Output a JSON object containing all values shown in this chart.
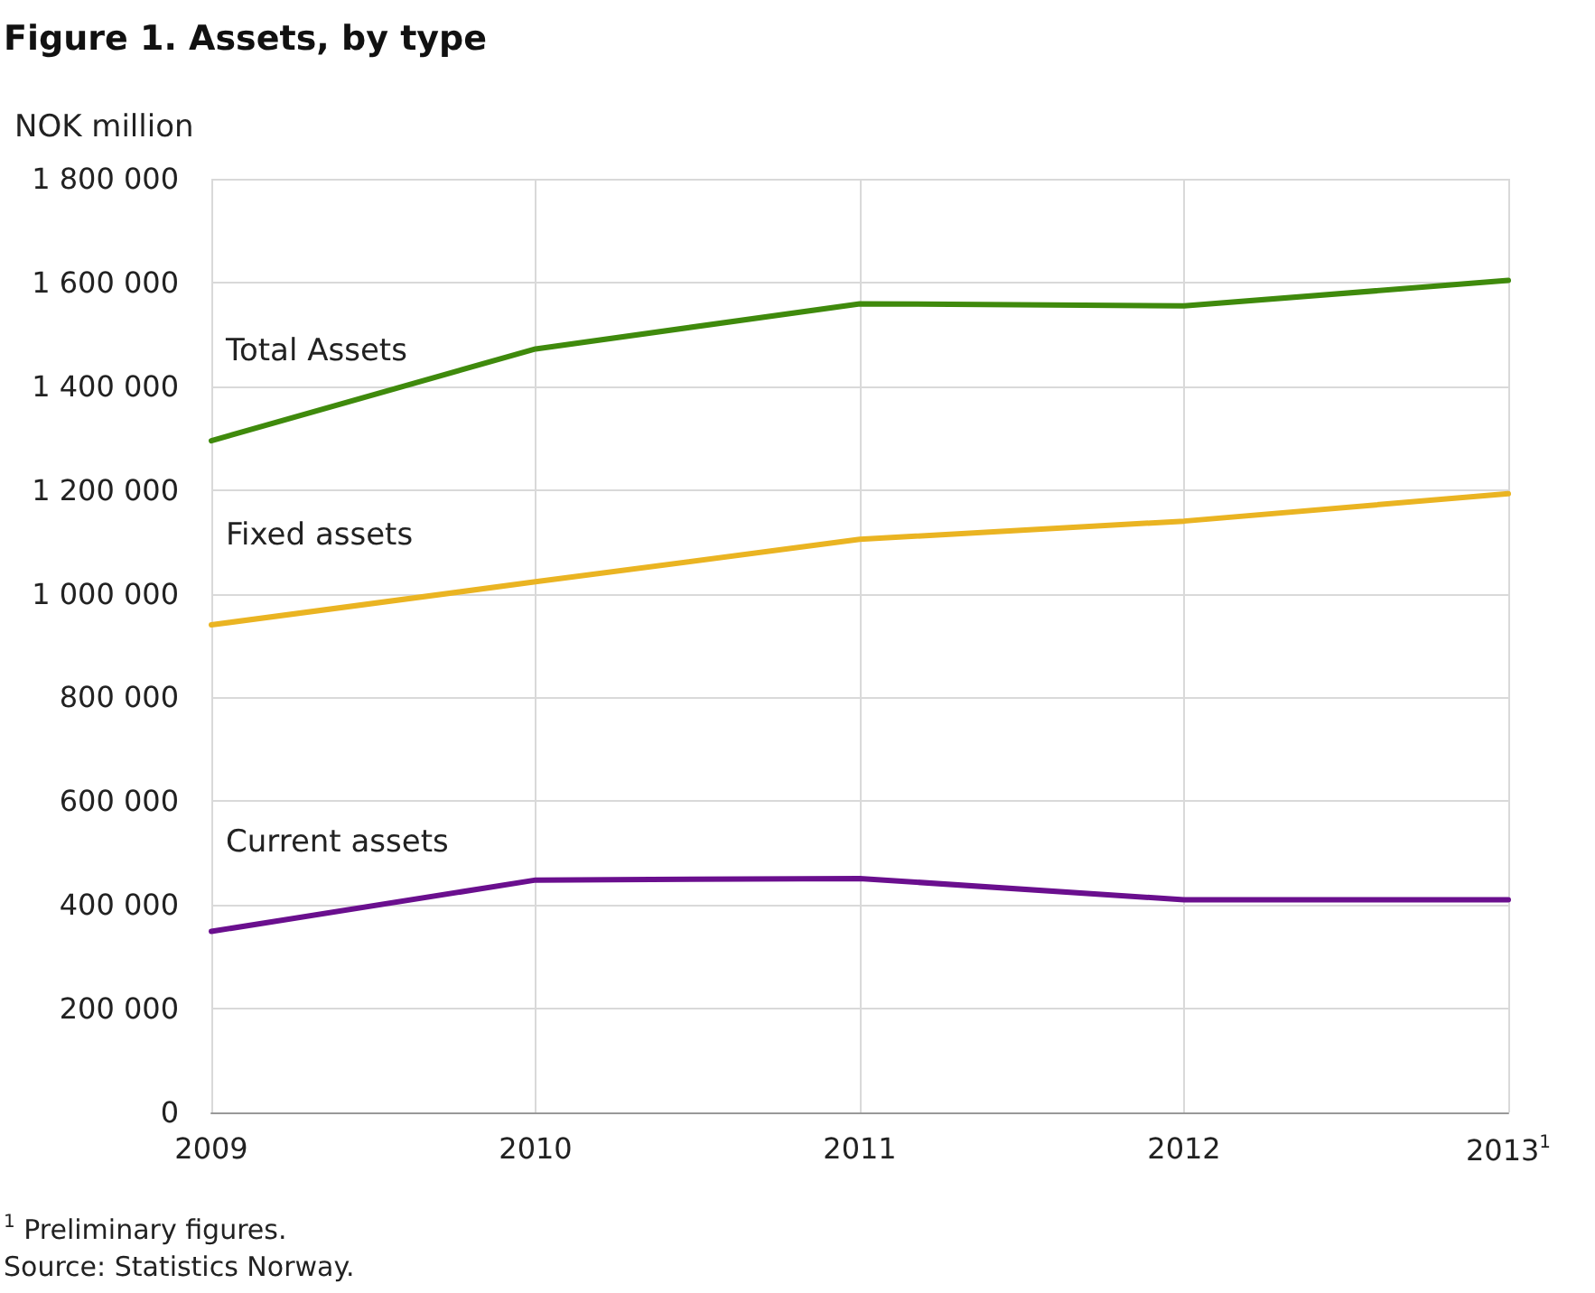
{
  "chart_data": {
    "type": "line",
    "title": "Figure 1. Assets, by type",
    "ylabel": "NOK million",
    "categories": [
      "2009",
      "2010",
      "2011",
      "2012",
      "2013$^{1}$"
    ],
    "series": [
      {
        "name": "Total Assets",
        "color": "#3f8a0c",
        "values": [
          1295000,
          1472000,
          1559000,
          1555000,
          1604000
        ]
      },
      {
        "name": "Fixed assets",
        "color": "#eab422",
        "values": [
          940000,
          1023000,
          1105000,
          1140000,
          1193000
        ]
      },
      {
        "name": "Current assets",
        "color": "#6a0f8e",
        "values": [
          349000,
          448000,
          451000,
          410000,
          410000
        ]
      }
    ],
    "ylim": [
      0,
      1800000
    ],
    "yticks": [
      0,
      {
        "value": 200000,
        "label": "200 000"
      },
      {
        "value": 400000,
        "label": "400 000"
      },
      {
        "value": 600000,
        "label": "600 000"
      },
      {
        "value": 800000,
        "label": "800 000"
      },
      {
        "value": 1000000,
        "label": "1 000 000"
      },
      {
        "value": 1200000,
        "label": "1 200 000"
      },
      {
        "value": 1400000,
        "label": "1 400 000"
      },
      {
        "value": 1600000,
        "label": "1 600 000"
      },
      {
        "value": 1800000,
        "label": "1 800 000"
      }
    ],
    "grid": true,
    "marker": "none",
    "line_style": "solid",
    "legend": false,
    "annotations": [
      "$^{1}$ Preliminary figures.",
      "Source: Statistics Norway."
    ]
  }
}
